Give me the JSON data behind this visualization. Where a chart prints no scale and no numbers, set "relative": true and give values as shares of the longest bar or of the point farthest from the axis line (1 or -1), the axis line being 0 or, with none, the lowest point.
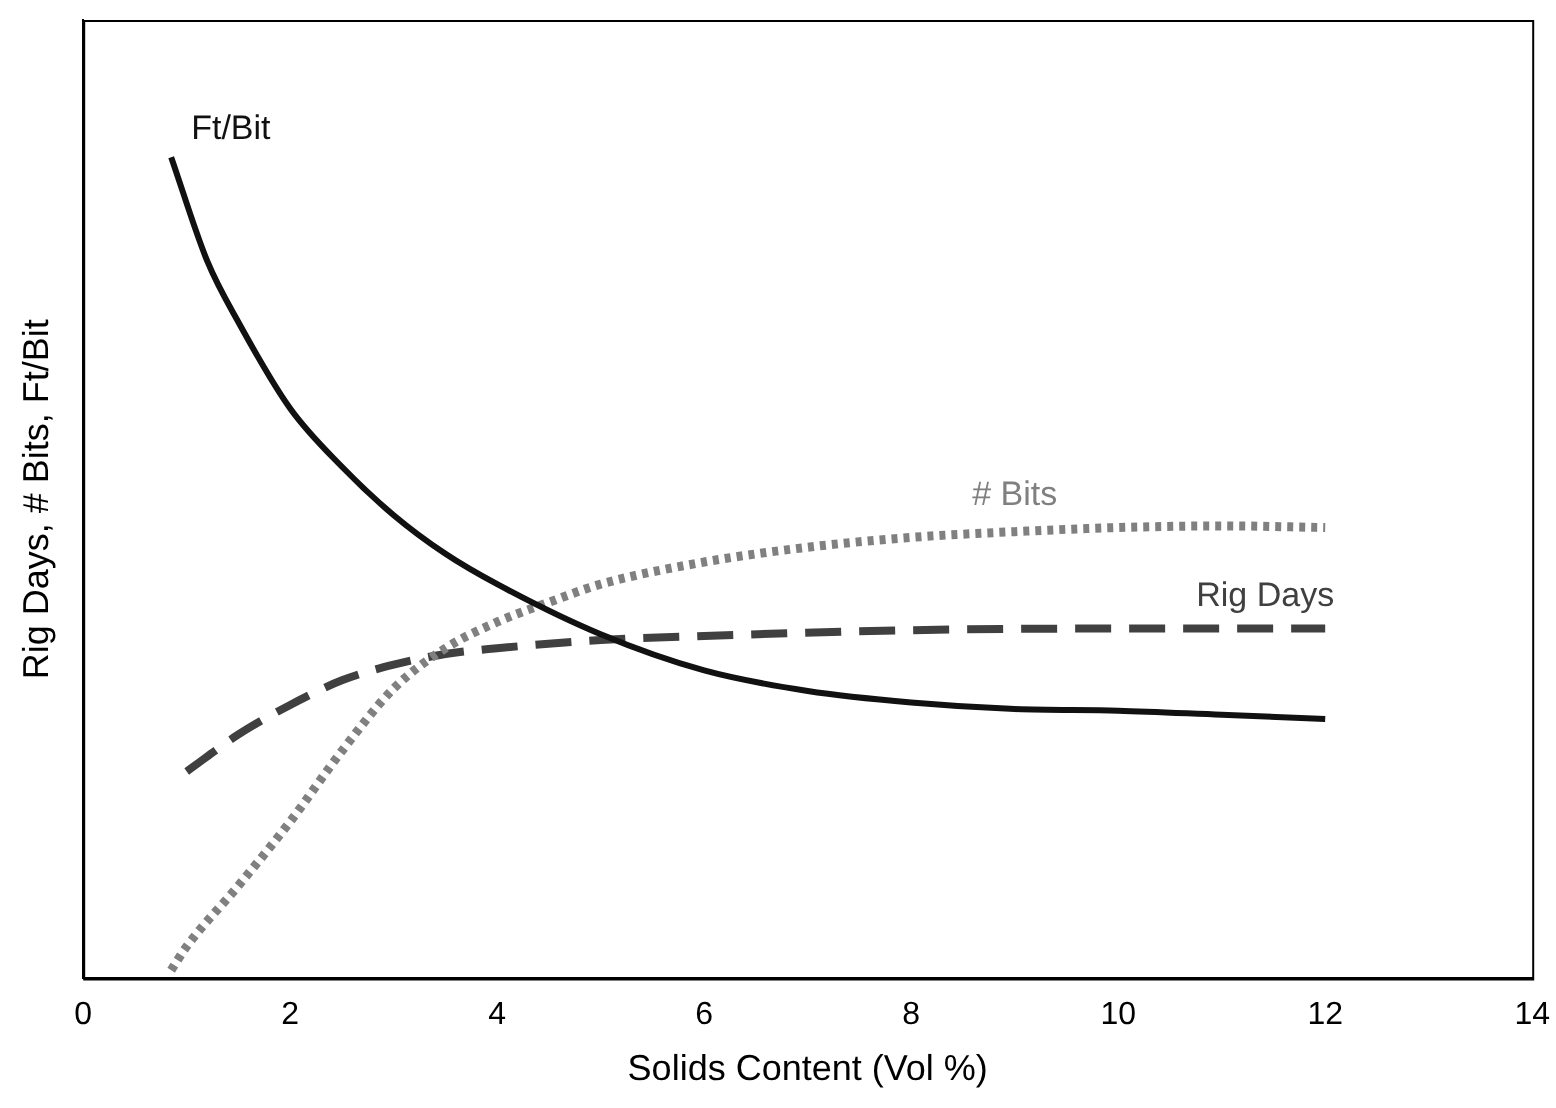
{
  "chart_data": {
    "type": "line",
    "xlabel": "Solids Content (Vol %)",
    "ylabel": "Rig Days, # Bits, Ft/Bit",
    "relative": true,
    "xlim": [
      0,
      14
    ],
    "xticks": [
      0,
      2,
      4,
      6,
      8,
      10,
      12,
      14
    ],
    "grid": false,
    "legend": false,
    "marker": "none",
    "series": [
      {
        "name": "Ft/Bit",
        "color": "#111111",
        "line_style": "solid",
        "x": [
          0.85,
          1.2,
          1.5,
          2,
          2.5,
          3,
          3.5,
          4,
          5,
          6,
          7,
          8,
          9,
          10,
          11,
          12
        ],
        "values": [
          1,
          0.873,
          0.799,
          0.694,
          0.623,
          0.564,
          0.517,
          0.48,
          0.419,
          0.375,
          0.35,
          0.336,
          0.328,
          0.326,
          0.321,
          0.316
        ]
      },
      {
        "name": "# Bits",
        "color": "#808080",
        "line_style": "dotted",
        "x": [
          0.85,
          1,
          1.5,
          2,
          2.5,
          3,
          3.5,
          4,
          4.5,
          5,
          6,
          7,
          8,
          9,
          10,
          11,
          12
        ],
        "values": [
          0.01,
          0.039,
          0.113,
          0.191,
          0.277,
          0.353,
          0.402,
          0.434,
          0.458,
          0.48,
          0.507,
          0.525,
          0.537,
          0.544,
          0.549,
          0.551,
          0.549
        ]
      },
      {
        "name": "Rig Days",
        "color": "#404040",
        "line_style": "dashed",
        "x": [
          1,
          1.5,
          2,
          2.5,
          3,
          3.5,
          4,
          5,
          6,
          8,
          10,
          12
        ],
        "values": [
          0.252,
          0.297,
          0.333,
          0.363,
          0.382,
          0.395,
          0.402,
          0.412,
          0.417,
          0.424,
          0.426,
          0.426
        ]
      }
    ]
  }
}
